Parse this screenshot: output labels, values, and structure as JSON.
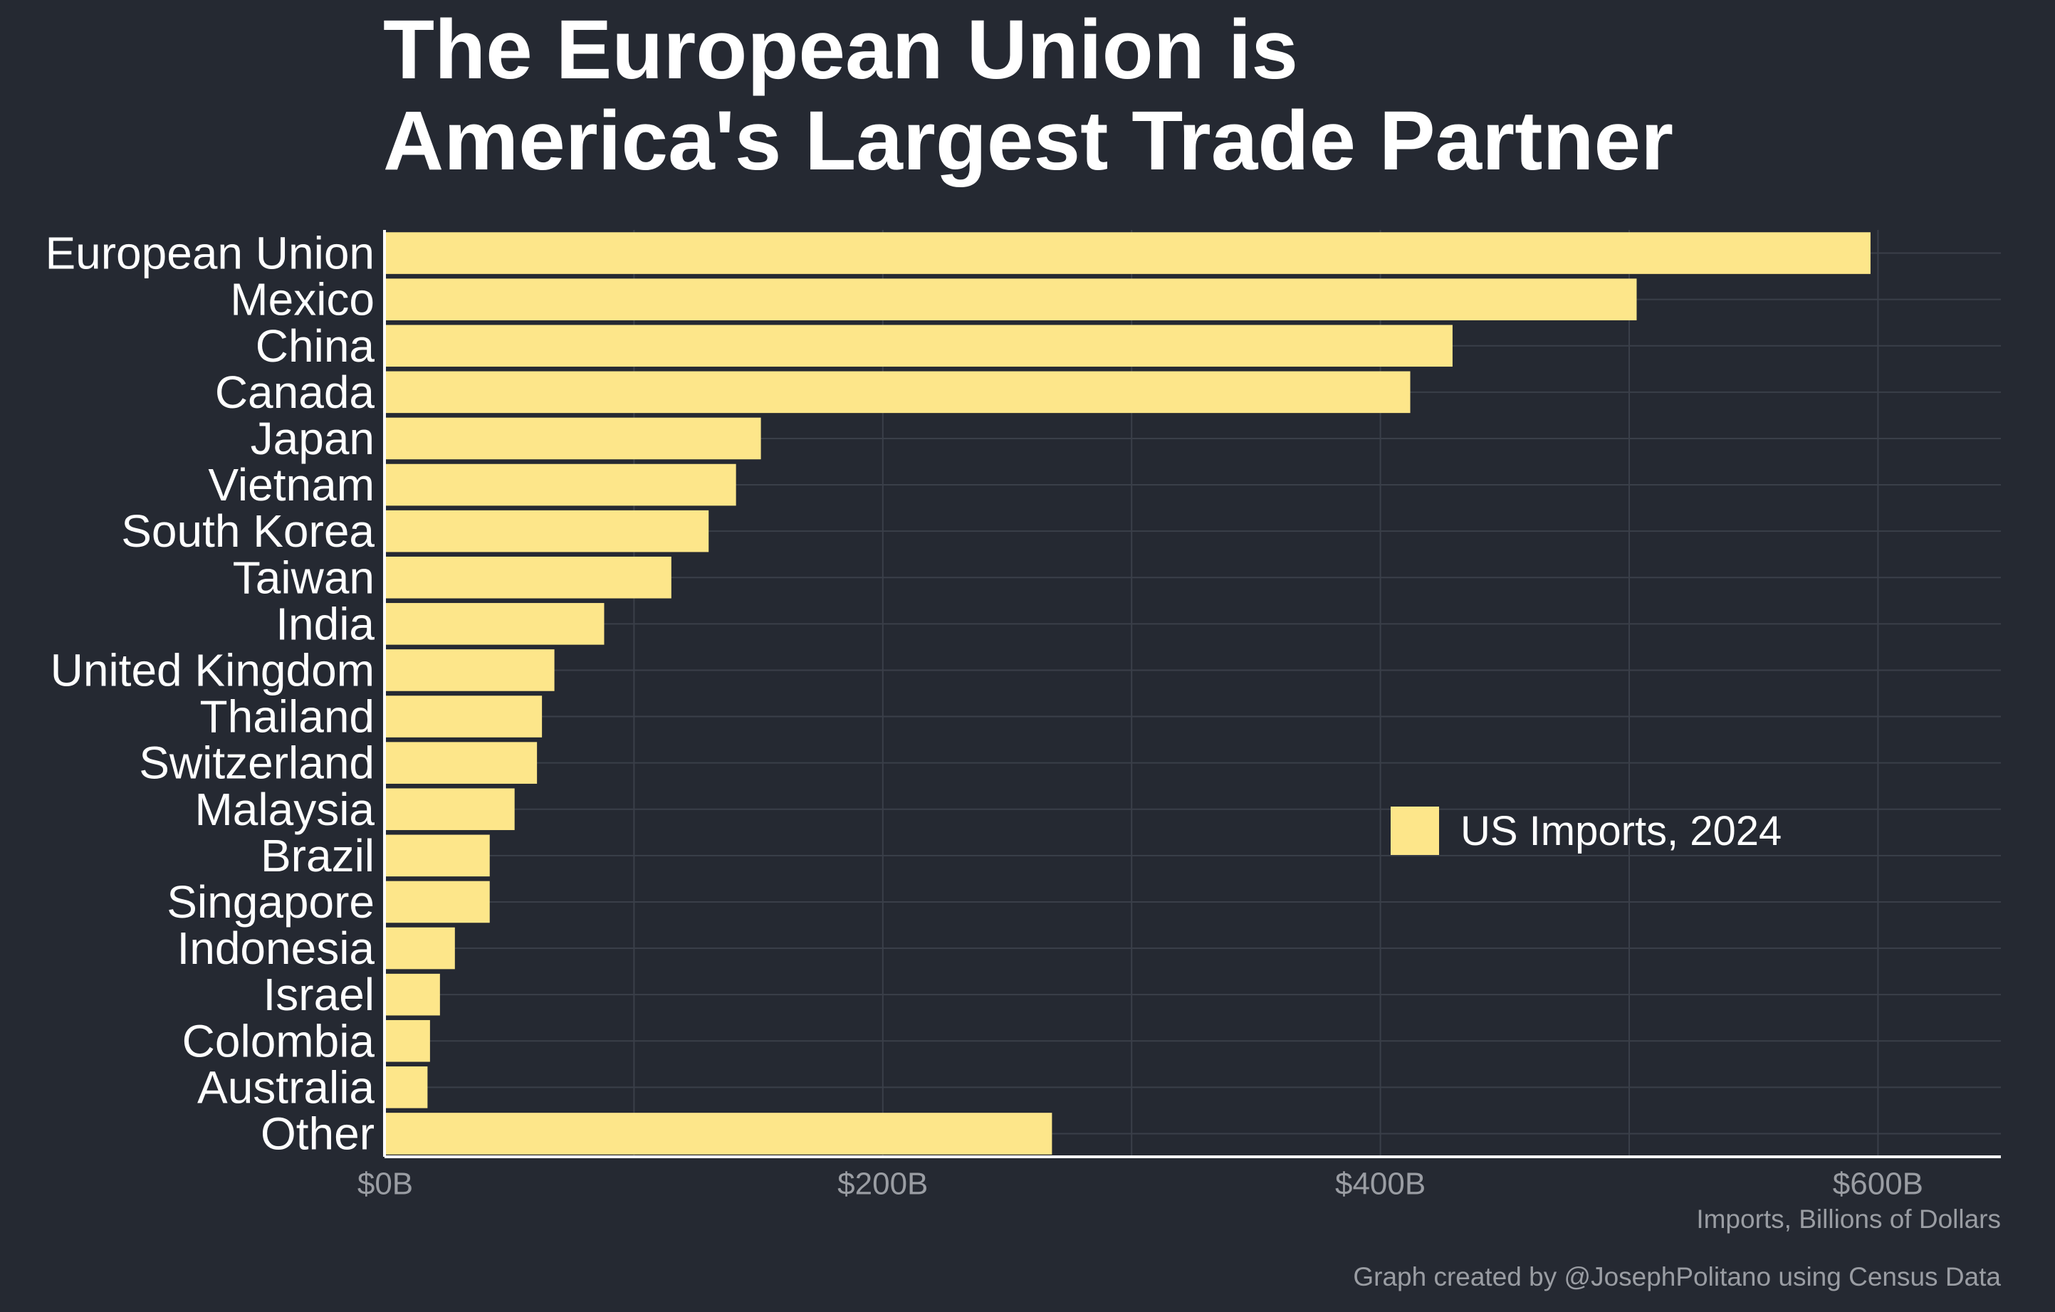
{
  "title": {
    "line1": "The European Union is",
    "line2": "America's Largest Trade Partner"
  },
  "xlabel": "Imports, Billions of Dollars",
  "credit": "Graph created by @JosephPolitano using Census Data",
  "legend": {
    "label": "US Imports, 2024"
  },
  "colors": {
    "background": "#252932",
    "bar": "#fde68a",
    "grid": "#3a3f49",
    "axis": "#ffffff",
    "tick_label": "#9a9da3",
    "category_label": "#ffffff"
  },
  "chart_data": {
    "type": "bar",
    "orientation": "horizontal",
    "categories": [
      "European Union",
      "Mexico",
      "China",
      "Canada",
      "Japan",
      "Vietnam",
      "South Korea",
      "Taiwan",
      "India",
      "United Kingdom",
      "Thailand",
      "Switzerland",
      "Malaysia",
      "Brazil",
      "Singapore",
      "Indonesia",
      "Israel",
      "Colombia",
      "Australia",
      "Other"
    ],
    "series": [
      {
        "name": "US Imports, 2024",
        "values": [
          597,
          503,
          429,
          412,
          151,
          141,
          130,
          115,
          88,
          68,
          63,
          61,
          52,
          42,
          42,
          28,
          22,
          18,
          17,
          268
        ]
      }
    ],
    "xlim": [
      0,
      650
    ],
    "xticks": [
      0,
      200,
      400,
      600
    ],
    "xtick_labels": [
      "$0B",
      "$200B",
      "$400B",
      "$600B"
    ],
    "xlabel": "Imports, Billions of Dollars",
    "title": "The European Union is America's Largest Trade Partner",
    "grid": true,
    "legend_position": "right"
  }
}
